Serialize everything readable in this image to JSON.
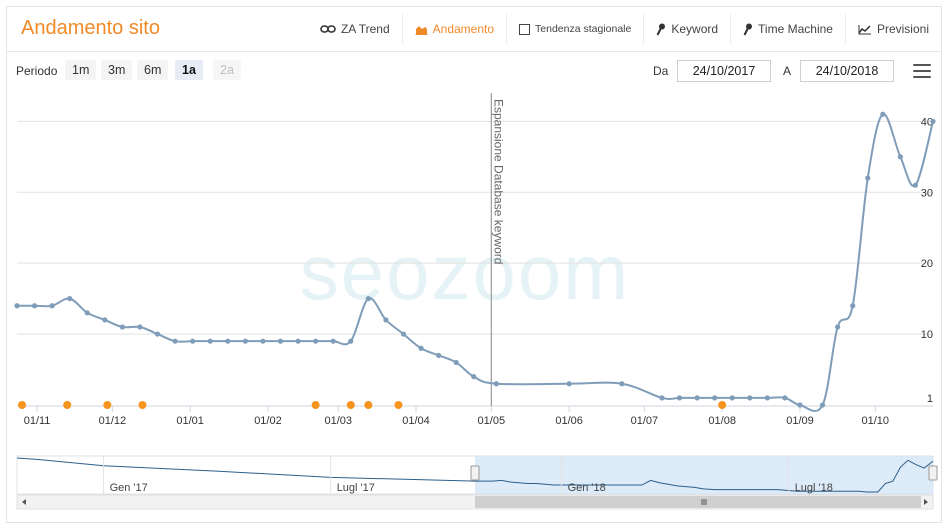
{
  "header": {
    "title": "Andamento sito",
    "toolbar": [
      {
        "label": "ZA Trend",
        "icon": "link-icon",
        "active": false
      },
      {
        "label": "Andamento",
        "icon": "area-chart-icon",
        "active": true
      },
      {
        "label": "Tendenza stagionale",
        "icon": "checkbox-icon",
        "active": false
      },
      {
        "label": "Keyword",
        "icon": "key-icon",
        "active": false
      },
      {
        "label": "Time Machine",
        "icon": "key-icon",
        "active": false
      },
      {
        "label": "Previsioni",
        "icon": "line-chart-icon",
        "active": false
      }
    ]
  },
  "controls": {
    "periodo_label": "Periodo",
    "periods": [
      {
        "label": "1m",
        "state": "normal"
      },
      {
        "label": "3m",
        "state": "normal"
      },
      {
        "label": "6m",
        "state": "normal"
      },
      {
        "label": "1a",
        "state": "active"
      },
      {
        "label": "2a",
        "state": "disabled"
      }
    ],
    "da_label": "Da",
    "from_date": "24/10/2017",
    "a_label": "A",
    "to_date": "24/10/2018"
  },
  "watermark": "seozoom",
  "chart_data": {
    "type": "line",
    "y_axis": {
      "ticks": [
        1,
        10,
        20,
        30,
        40
      ],
      "reversed": false,
      "position": "right",
      "range": [
        0,
        44
      ]
    },
    "x_ticks": [
      {
        "label": "01/11",
        "date": "2017-11-01"
      },
      {
        "label": "01/12",
        "date": "2017-12-01"
      },
      {
        "label": "01/01",
        "date": "2018-01-01"
      },
      {
        "label": "01/02",
        "date": "2018-02-01"
      },
      {
        "label": "01/03",
        "date": "2018-03-01"
      },
      {
        "label": "01/04",
        "date": "2018-04-01"
      },
      {
        "label": "01/05",
        "date": "2018-05-01"
      },
      {
        "label": "01/06",
        "date": "2018-06-01"
      },
      {
        "label": "01/07",
        "date": "2018-07-01"
      },
      {
        "label": "01/08",
        "date": "2018-08-01"
      },
      {
        "label": "01/09",
        "date": "2018-09-01"
      },
      {
        "label": "01/10",
        "date": "2018-10-01"
      }
    ],
    "x_range": [
      "2017-10-24",
      "2018-10-24"
    ],
    "series": [
      {
        "color": "#7f9db9",
        "points": [
          [
            "2017-10-24",
            14
          ],
          [
            "2017-10-31",
            14
          ],
          [
            "2017-11-07",
            14
          ],
          [
            "2017-11-14",
            15
          ],
          [
            "2017-11-21",
            13
          ],
          [
            "2017-11-28",
            12
          ],
          [
            "2017-12-05",
            11
          ],
          [
            "2017-12-12",
            11
          ],
          [
            "2017-12-19",
            10
          ],
          [
            "2017-12-26",
            9
          ],
          [
            "2018-01-02",
            9
          ],
          [
            "2018-01-09",
            9
          ],
          [
            "2018-01-16",
            9
          ],
          [
            "2018-01-23",
            9
          ],
          [
            "2018-01-30",
            9
          ],
          [
            "2018-02-06",
            9
          ],
          [
            "2018-02-13",
            9
          ],
          [
            "2018-02-20",
            9
          ],
          [
            "2018-02-27",
            9
          ],
          [
            "2018-03-06",
            9
          ],
          [
            "2018-03-13",
            15
          ],
          [
            "2018-03-20",
            12
          ],
          [
            "2018-03-27",
            10
          ],
          [
            "2018-04-03",
            8
          ],
          [
            "2018-04-10",
            7
          ],
          [
            "2018-04-17",
            6
          ],
          [
            "2018-04-24",
            4
          ],
          [
            "2018-05-03",
            3
          ],
          [
            "2018-06-01",
            3
          ],
          [
            "2018-06-22",
            3
          ],
          [
            "2018-07-08",
            1
          ],
          [
            "2018-07-15",
            1
          ],
          [
            "2018-07-22",
            1
          ],
          [
            "2018-07-29",
            1
          ],
          [
            "2018-08-05",
            1
          ],
          [
            "2018-08-12",
            1
          ],
          [
            "2018-08-19",
            1
          ],
          [
            "2018-08-26",
            1
          ],
          [
            "2018-09-01",
            0
          ],
          [
            "2018-09-10",
            0
          ],
          [
            "2018-09-16",
            11
          ],
          [
            "2018-09-22",
            14
          ],
          [
            "2018-09-28",
            32
          ],
          [
            "2018-10-04",
            41
          ],
          [
            "2018-10-11",
            35
          ],
          [
            "2018-10-17",
            31
          ],
          [
            "2018-10-24",
            40
          ]
        ]
      }
    ],
    "events": [
      "2017-10-26",
      "2017-11-13",
      "2017-11-29",
      "2017-12-13",
      "2018-02-20",
      "2018-03-06",
      "2018-03-13",
      "2018-03-25",
      "2018-08-01"
    ],
    "event_color": "#f7941d",
    "plot_line": {
      "date": "2018-05-01",
      "label": "Espansione Database keyword"
    },
    "navigator": {
      "labels": [
        {
          "label": "Gen '17",
          "date": "2017-01-01"
        },
        {
          "label": "Lugl '17",
          "date": "2017-07-01"
        },
        {
          "label": "Gen '18",
          "date": "2018-01-01"
        },
        {
          "label": "Lugl '18",
          "date": "2018-07-01"
        }
      ],
      "range": [
        "2016-10-24",
        "2018-10-24"
      ],
      "selection": [
        "2017-10-24",
        "2018-10-24"
      ]
    }
  }
}
